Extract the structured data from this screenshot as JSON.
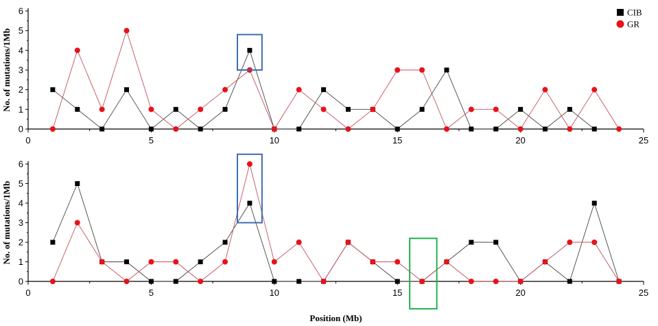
{
  "chart_data": [
    {
      "type": "line",
      "xlabel": "",
      "ylabel": "No. of mutations/1Mb",
      "xlim": [
        0,
        25
      ],
      "ylim": [
        0,
        6
      ],
      "xticks": [
        0,
        5,
        10,
        15,
        20,
        25
      ],
      "yticks": [
        0,
        1,
        2,
        3,
        4,
        5,
        6
      ],
      "grid": false,
      "legend": "top-right",
      "series": [
        {
          "name": "CIB",
          "color": "#000000",
          "marker": "square",
          "x": [
            1,
            2,
            3,
            4,
            5,
            6,
            7,
            8,
            9,
            10,
            11,
            12,
            13,
            14,
            15,
            16,
            17,
            18,
            19,
            20,
            21,
            22,
            23
          ],
          "y": [
            2,
            1,
            0,
            2,
            0,
            1,
            0,
            1,
            4,
            0,
            0,
            2,
            1,
            1,
            0,
            1,
            3,
            0,
            0,
            1,
            0,
            1,
            0
          ]
        },
        {
          "name": "GR",
          "color": "#e8121a",
          "marker": "circle",
          "x": [
            1,
            2,
            3,
            4,
            5,
            6,
            7,
            8,
            9,
            10,
            11,
            12,
            13,
            14,
            15,
            16,
            17,
            18,
            19,
            20,
            21,
            22,
            23,
            24
          ],
          "y": [
            0,
            4,
            1,
            5,
            1,
            0,
            1,
            2,
            3,
            0,
            2,
            1,
            0,
            1,
            3,
            3,
            0,
            1,
            1,
            0,
            2,
            0,
            2,
            0
          ]
        }
      ],
      "highlights": [
        {
          "color": "#3c6cb4",
          "x": [
            8.5,
            9.5
          ],
          "y": [
            3,
            4.8
          ]
        }
      ]
    },
    {
      "type": "line",
      "xlabel": "Position (Mb)",
      "ylabel": "No. of mutations/1Mb",
      "xlim": [
        0,
        25
      ],
      "ylim": [
        0,
        6
      ],
      "xticks": [
        0,
        5,
        10,
        15,
        20,
        25
      ],
      "yticks": [
        0,
        1,
        2,
        3,
        4,
        5,
        6
      ],
      "grid": false,
      "series": [
        {
          "name": "CIB",
          "color": "#000000",
          "marker": "square",
          "x": [
            1,
            2,
            3,
            4,
            5,
            6,
            7,
            8,
            9,
            10,
            11,
            12,
            13,
            14,
            15,
            16,
            17,
            18,
            19,
            20,
            21,
            22,
            23,
            24
          ],
          "y": [
            2,
            5,
            1,
            1,
            0,
            0,
            1,
            2,
            4,
            0,
            0,
            0,
            2,
            1,
            0,
            0,
            1,
            2,
            2,
            0,
            1,
            0,
            4,
            0
          ]
        },
        {
          "name": "GR",
          "color": "#e8121a",
          "marker": "circle",
          "x": [
            1,
            2,
            3,
            4,
            5,
            6,
            7,
            8,
            9,
            10,
            11,
            12,
            13,
            14,
            15,
            16,
            17,
            18,
            19,
            20,
            21,
            22,
            23,
            24
          ],
          "y": [
            0,
            3,
            1,
            0,
            1,
            1,
            0,
            1,
            6,
            1,
            2,
            0,
            2,
            1,
            1,
            0,
            1,
            0,
            0,
            0,
            1,
            2,
            2,
            0
          ]
        }
      ],
      "highlights": [
        {
          "color": "#3c6cb4",
          "x": [
            8.5,
            9.5
          ],
          "y": [
            3,
            6.5
          ]
        },
        {
          "color": "#22b04a",
          "x": [
            15.5,
            16.6
          ],
          "y": [
            -1.4,
            2.2
          ]
        }
      ]
    }
  ]
}
